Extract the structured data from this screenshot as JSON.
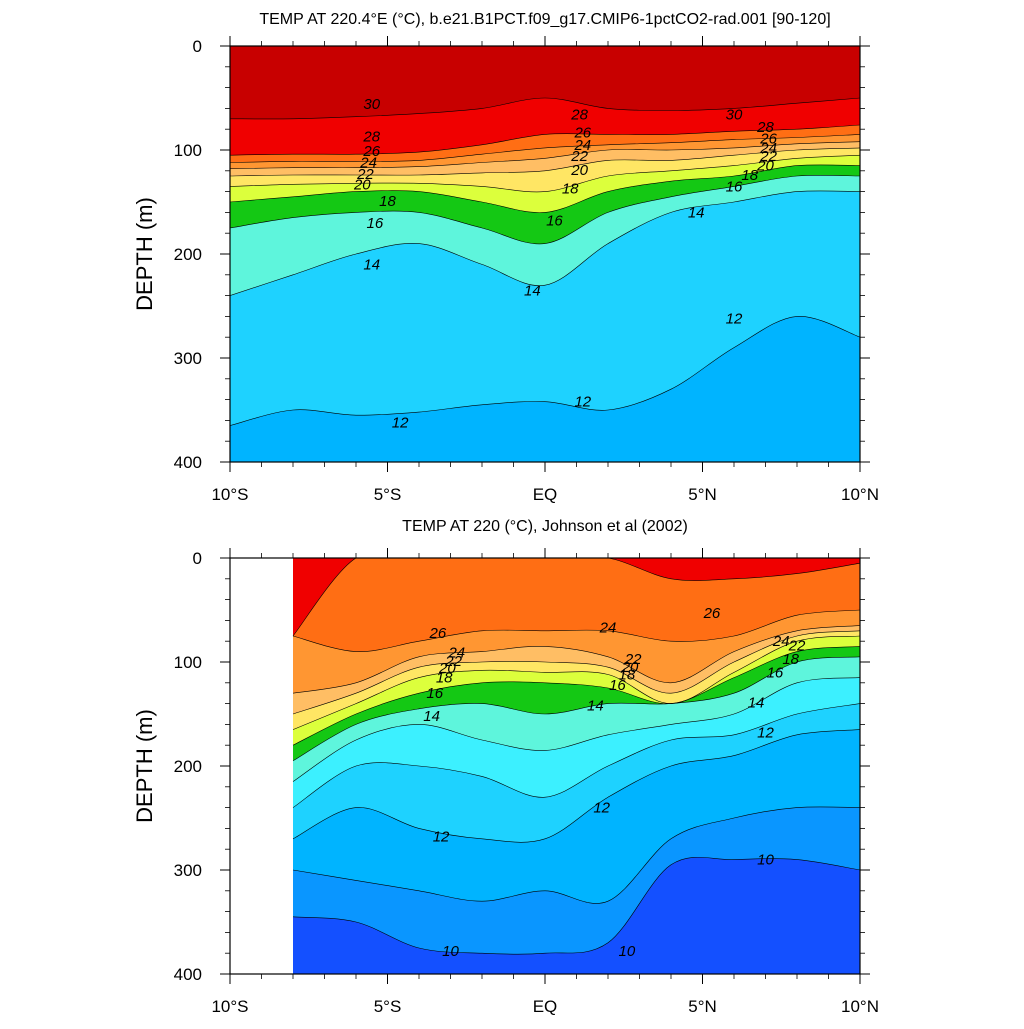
{
  "colors": {
    "t10": "#1464ff",
    "t11": "#0a96ff",
    "t12": "#00b4ff",
    "t13": "#1ed2ff",
    "t14": "#3cf0ff",
    "t15": "#5ef5dc",
    "t16": "#00dc64",
    "t17": "#14c814",
    "t18": "#8cf000",
    "t19": "#dcff3c",
    "t20": "#ffff50",
    "t21": "#ffe664",
    "t22": "#ffd278",
    "t23": "#ffbe64",
    "t24": "#ffaa50",
    "t25": "#ff9632",
    "t26": "#ff8a1e",
    "t27": "#ff6e14",
    "t28": "#ff4600",
    "t29": "#f00000",
    "t30": "#dc0000",
    "t31": "#c80000"
  },
  "chart_data": [
    {
      "type": "contour",
      "title": "TEMP AT 220.4°E (°C), b.e21.B1PCT.f09_g17.CMIP6-1pctCO2-rad.001 [90-120]",
      "xlabel": "",
      "ylabel": "DEPTH (m)",
      "xlim": [
        -10,
        10
      ],
      "ylim": [
        400,
        0
      ],
      "xticks": [
        -10,
        -5,
        0,
        5,
        10
      ],
      "xtick_labels": [
        "10°S",
        "5°S",
        "EQ",
        "5°N",
        "10°N"
      ],
      "yticks": [
        0,
        100,
        200,
        300,
        400
      ],
      "ytick_labels": [
        "0",
        "100",
        "200",
        "300",
        "400"
      ],
      "data_x_start": -10,
      "x": [
        -10,
        -8,
        -6,
        -4,
        -2,
        0,
        2,
        4,
        6,
        8,
        10
      ],
      "isotherms": [
        {
          "t": 12,
          "depth": [
            365,
            350,
            355,
            352,
            345,
            342,
            350,
            330,
            290,
            260,
            280
          ]
        },
        {
          "t": 14,
          "depth": [
            240,
            220,
            200,
            190,
            210,
            230,
            190,
            160,
            150,
            140,
            140
          ]
        },
        {
          "t": 16,
          "depth": [
            175,
            165,
            160,
            160,
            175,
            190,
            160,
            145,
            135,
            125,
            125
          ]
        },
        {
          "t": 18,
          "depth": [
            150,
            145,
            140,
            140,
            150,
            160,
            140,
            130,
            125,
            115,
            115
          ]
        },
        {
          "t": 20,
          "depth": [
            135,
            133,
            132,
            132,
            135,
            140,
            125,
            120,
            115,
            108,
            105
          ]
        },
        {
          "t": 22,
          "depth": [
            125,
            124,
            124,
            124,
            122,
            120,
            110,
            110,
            105,
            100,
            98
          ]
        },
        {
          "t": 24,
          "depth": [
            118,
            117,
            117,
            116,
            112,
            108,
            100,
            100,
            98,
            94,
            92
          ]
        },
        {
          "t": 26,
          "depth": [
            112,
            111,
            111,
            110,
            104,
            98,
            95,
            93,
            90,
            88,
            85
          ]
        },
        {
          "t": 28,
          "depth": [
            105,
            104,
            104,
            102,
            95,
            85,
            85,
            85,
            82,
            80,
            76
          ]
        },
        {
          "t": 30,
          "depth": [
            70,
            70,
            68,
            65,
            60,
            50,
            60,
            62,
            60,
            55,
            50
          ]
        }
      ],
      "labels": [
        {
          "text": "30",
          "x": -5.5,
          "y": 56
        },
        {
          "text": "28",
          "x": -5.5,
          "y": 87
        },
        {
          "text": "26",
          "x": -5.5,
          "y": 101
        },
        {
          "text": "24",
          "x": -5.6,
          "y": 112
        },
        {
          "text": "22",
          "x": -5.7,
          "y": 123
        },
        {
          "text": "20",
          "x": -5.8,
          "y": 133
        },
        {
          "text": "18",
          "x": -5.0,
          "y": 149
        },
        {
          "text": "16",
          "x": -5.4,
          "y": 170
        },
        {
          "text": "14",
          "x": -5.5,
          "y": 210
        },
        {
          "text": "14",
          "x": -0.4,
          "y": 235
        },
        {
          "text": "16",
          "x": 0.3,
          "y": 168
        },
        {
          "text": "18",
          "x": 0.8,
          "y": 137
        },
        {
          "text": "20",
          "x": 1.1,
          "y": 119
        },
        {
          "text": "22",
          "x": 1.1,
          "y": 106
        },
        {
          "text": "24",
          "x": 1.2,
          "y": 95
        },
        {
          "text": "26",
          "x": 1.2,
          "y": 83
        },
        {
          "text": "28",
          "x": 1.1,
          "y": 66
        },
        {
          "text": "30",
          "x": 6.0,
          "y": 66
        },
        {
          "text": "28",
          "x": 7.0,
          "y": 78
        },
        {
          "text": "26",
          "x": 7.1,
          "y": 89
        },
        {
          "text": "24",
          "x": 7.1,
          "y": 98
        },
        {
          "text": "22",
          "x": 7.1,
          "y": 106
        },
        {
          "text": "20",
          "x": 7.0,
          "y": 115
        },
        {
          "text": "18",
          "x": 6.5,
          "y": 124
        },
        {
          "text": "16",
          "x": 6.0,
          "y": 135
        },
        {
          "text": "14",
          "x": 4.8,
          "y": 160
        },
        {
          "text": "12",
          "x": 6.0,
          "y": 262
        },
        {
          "text": "12",
          "x": 1.2,
          "y": 342
        },
        {
          "text": "12",
          "x": -4.6,
          "y": 362
        }
      ]
    },
    {
      "type": "contour",
      "title": "TEMP AT 220 (°C), Johnson et al (2002)",
      "xlabel": "",
      "ylabel": "DEPTH (m)",
      "xlim": [
        -10,
        10
      ],
      "ylim": [
        400,
        0
      ],
      "xticks": [
        -10,
        -5,
        0,
        5,
        10
      ],
      "xtick_labels": [
        "10°S",
        "5°S",
        "EQ",
        "5°N",
        "10°N"
      ],
      "yticks": [
        0,
        100,
        200,
        300,
        400
      ],
      "ytick_labels": [
        "0",
        "100",
        "200",
        "300",
        "400"
      ],
      "data_x_start": -8,
      "x": [
        -8,
        -6,
        -4,
        -2,
        0,
        2,
        4,
        6,
        8,
        10
      ],
      "isotherms": [
        {
          "t": 10,
          "depth": [
            345,
            350,
            375,
            380,
            380,
            370,
            295,
            290,
            290,
            300
          ]
        },
        {
          "t": 11,
          "depth": [
            300,
            310,
            320,
            330,
            320,
            330,
            270,
            250,
            240,
            240
          ]
        },
        {
          "t": 12,
          "depth": [
            270,
            240,
            260,
            270,
            270,
            230,
            200,
            190,
            170,
            165
          ]
        },
        {
          "t": 13,
          "depth": [
            240,
            200,
            200,
            210,
            230,
            200,
            175,
            170,
            150,
            140
          ]
        },
        {
          "t": 14,
          "depth": [
            215,
            175,
            160,
            175,
            185,
            170,
            160,
            150,
            120,
            115
          ]
        },
        {
          "t": 16,
          "depth": [
            195,
            160,
            145,
            140,
            150,
            140,
            140,
            130,
            100,
            95
          ]
        },
        {
          "t": 18,
          "depth": [
            180,
            150,
            130,
            120,
            120,
            125,
            140,
            115,
            90,
            85
          ]
        },
        {
          "t": 20,
          "depth": [
            165,
            140,
            115,
            108,
            110,
            112,
            140,
            110,
            80,
            75
          ]
        },
        {
          "t": 22,
          "depth": [
            150,
            130,
            105,
            100,
            100,
            105,
            130,
            100,
            75,
            70
          ]
        },
        {
          "t": 24,
          "depth": [
            130,
            120,
            95,
            90,
            85,
            95,
            120,
            90,
            70,
            65
          ]
        },
        {
          "t": 26,
          "depth": [
            75,
            90,
            80,
            70,
            70,
            70,
            80,
            75,
            55,
            50
          ]
        },
        {
          "t": 28,
          "depth": [
            75,
            0,
            0,
            0,
            0,
            0,
            20,
            20,
            15,
            5
          ]
        }
      ],
      "labels": [
        {
          "text": "26",
          "x": -3.4,
          "y": 72
        },
        {
          "text": "24",
          "x": -2.8,
          "y": 91
        },
        {
          "text": "22",
          "x": -2.9,
          "y": 99
        },
        {
          "text": "20",
          "x": -3.1,
          "y": 106
        },
        {
          "text": "18",
          "x": -3.2,
          "y": 115
        },
        {
          "text": "16",
          "x": -3.5,
          "y": 130
        },
        {
          "text": "14",
          "x": -3.6,
          "y": 152
        },
        {
          "text": "24",
          "x": 2.0,
          "y": 67
        },
        {
          "text": "22",
          "x": 2.8,
          "y": 97
        },
        {
          "text": "20",
          "x": 2.7,
          "y": 105
        },
        {
          "text": "18",
          "x": 2.6,
          "y": 112
        },
        {
          "text": "16",
          "x": 2.3,
          "y": 122
        },
        {
          "text": "14",
          "x": 1.6,
          "y": 142
        },
        {
          "text": "26",
          "x": 5.3,
          "y": 53
        },
        {
          "text": "24",
          "x": 7.5,
          "y": 80
        },
        {
          "text": "22",
          "x": 8.0,
          "y": 84
        },
        {
          "text": "18",
          "x": 7.8,
          "y": 97
        },
        {
          "text": "16",
          "x": 7.3,
          "y": 110
        },
        {
          "text": "14",
          "x": 6.7,
          "y": 139
        },
        {
          "text": "12",
          "x": 7.0,
          "y": 168
        },
        {
          "text": "12",
          "x": 1.8,
          "y": 240
        },
        {
          "text": "12",
          "x": -3.3,
          "y": 268
        },
        {
          "text": "10",
          "x": 7.0,
          "y": 290
        },
        {
          "text": "10",
          "x": 2.6,
          "y": 378
        },
        {
          "text": "10",
          "x": -3.0,
          "y": 378
        }
      ]
    }
  ]
}
